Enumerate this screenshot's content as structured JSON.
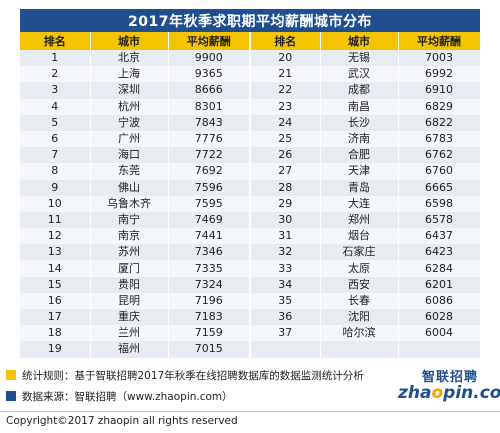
{
  "chart_data": {
    "type": "table",
    "title": "2017年秋季求职期平均薪酬城市分布",
    "columns": [
      "排名",
      "城市",
      "平均薪酬",
      "排名",
      "城市",
      "平均薪酬"
    ],
    "left": [
      {
        "rank": "1",
        "city": "北京",
        "salary": "9900"
      },
      {
        "rank": "2",
        "city": "上海",
        "salary": "9365"
      },
      {
        "rank": "3",
        "city": "深圳",
        "salary": "8666"
      },
      {
        "rank": "4",
        "city": "杭州",
        "salary": "8301"
      },
      {
        "rank": "5",
        "city": "宁波",
        "salary": "7843"
      },
      {
        "rank": "6",
        "city": "广州",
        "salary": "7776"
      },
      {
        "rank": "7",
        "city": "海口",
        "salary": "7722"
      },
      {
        "rank": "8",
        "city": "东莞",
        "salary": "7692"
      },
      {
        "rank": "9",
        "city": "佛山",
        "salary": "7596"
      },
      {
        "rank": "10",
        "city": "乌鲁木齐",
        "salary": "7595"
      },
      {
        "rank": "11",
        "city": "南宁",
        "salary": "7469"
      },
      {
        "rank": "12",
        "city": "南京",
        "salary": "7441"
      },
      {
        "rank": "13",
        "city": "苏州",
        "salary": "7346"
      },
      {
        "rank": "14",
        "city": "厦门",
        "salary": "7335"
      },
      {
        "rank": "15",
        "city": "贵阳",
        "salary": "7324"
      },
      {
        "rank": "16",
        "city": "昆明",
        "salary": "7196"
      },
      {
        "rank": "17",
        "city": "重庆",
        "salary": "7183"
      },
      {
        "rank": "18",
        "city": "兰州",
        "salary": "7159"
      },
      {
        "rank": "19",
        "city": "福州",
        "salary": "7015"
      }
    ],
    "right": [
      {
        "rank": "20",
        "city": "无锡",
        "salary": "7003"
      },
      {
        "rank": "21",
        "city": "武汉",
        "salary": "6992"
      },
      {
        "rank": "22",
        "city": "成都",
        "salary": "6910"
      },
      {
        "rank": "23",
        "city": "南昌",
        "salary": "6829"
      },
      {
        "rank": "24",
        "city": "长沙",
        "salary": "6822"
      },
      {
        "rank": "25",
        "city": "济南",
        "salary": "6783"
      },
      {
        "rank": "26",
        "city": "合肥",
        "salary": "6762"
      },
      {
        "rank": "27",
        "city": "天津",
        "salary": "6760"
      },
      {
        "rank": "28",
        "city": "青岛",
        "salary": "6665"
      },
      {
        "rank": "29",
        "city": "大连",
        "salary": "6598"
      },
      {
        "rank": "30",
        "city": "郑州",
        "salary": "6578"
      },
      {
        "rank": "31",
        "city": "烟台",
        "salary": "6437"
      },
      {
        "rank": "32",
        "city": "石家庄",
        "salary": "6423"
      },
      {
        "rank": "33",
        "city": "太原",
        "salary": "6284"
      },
      {
        "rank": "34",
        "city": "西安",
        "salary": "6201"
      },
      {
        "rank": "35",
        "city": "长春",
        "salary": "6086"
      },
      {
        "rank": "36",
        "city": "沈阳",
        "salary": "6028"
      },
      {
        "rank": "37",
        "city": "哈尔滨",
        "salary": "6004"
      }
    ]
  },
  "notes": {
    "rule": "统计规则：基于智联招聘2017年秋季在线招聘数据库的数据监测统计分析",
    "source": "数据来源：智联招聘（www.zhaopin.com）"
  },
  "logo": {
    "cn": "智联招聘",
    "en_prefix": "zha",
    "en_o": "o",
    "en_suffix": "pin.com"
  },
  "copyright": "Copyright©2017 zhaopin all rights reserved",
  "colors": {
    "header_blue": "#1f4f8f",
    "header_yellow": "#f5c400",
    "row_odd": "#e7ebf2",
    "row_even": "#f6f7fa"
  }
}
